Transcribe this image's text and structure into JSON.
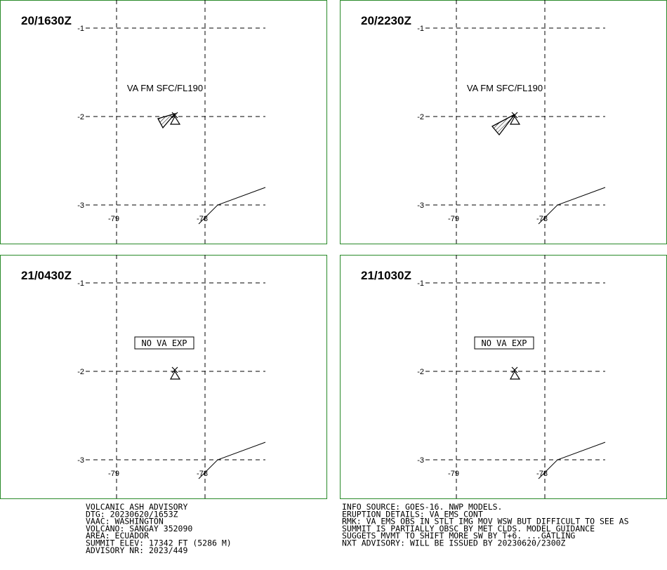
{
  "grid": {
    "lat_labels": [
      "-1",
      "-2",
      "-3"
    ],
    "lon_labels": [
      "-79",
      "-78"
    ]
  },
  "panels": [
    {
      "time": "20/1630Z",
      "annotation": "VA FM SFC/FL190"
    },
    {
      "time": "20/2230Z",
      "annotation": "VA FM SFC/FL190"
    },
    {
      "time": "21/0430Z",
      "annotation": "NO VA EXP"
    },
    {
      "time": "21/1030Z",
      "annotation": "NO VA EXP"
    }
  ],
  "advisory_left": [
    "VOLCANIC ASH ADVISORY",
    "DTG: 20230620/1653Z",
    "VAAC: WASHINGTON",
    "VOLCANO: SANGAY 352090",
    "AREA: ECUADOR",
    "SUMMIT ELEV: 17342 FT (5286 M)",
    "ADVISORY NR: 2023/449"
  ],
  "advisory_right": [
    "INFO SOURCE: GOES-16. NWP MODELS.",
    "ERUPTION DETAILS: VA EMS CONT",
    "RMK: VA EMS OBS IN STLT IMG MOV WSW BUT DIFFICULT TO SEE AS",
    "SUMMIT IS PARTIALLY OBSC BY MET CLDS. MODEL GUIDANCE",
    "SUGGETS MVMT TO SHIFT MORE SW BY T+6. ...GATLING",
    "NXT ADVISORY: WILL BE ISSUED BY 20230620/2300Z"
  ]
}
